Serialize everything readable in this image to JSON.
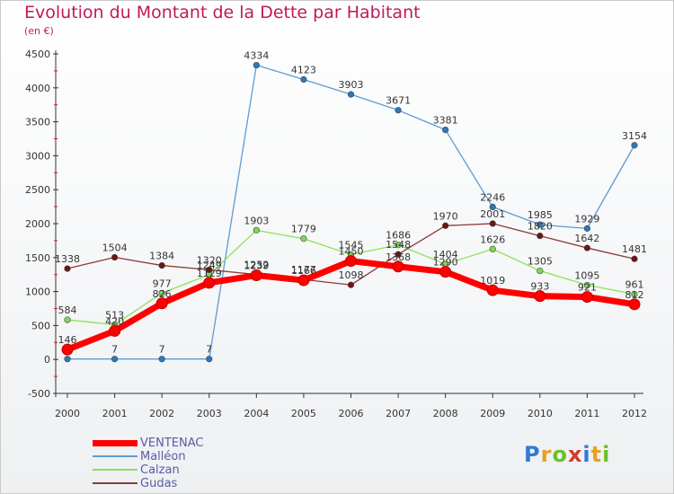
{
  "header": {
    "title": "Evolution du Montant de la Dette par Habitant",
    "subtitle": "(en €)"
  },
  "brand": {
    "text": "Proxiti",
    "letter_colors": [
      "#2e7bd6",
      "#e8a020",
      "#6cbf2a",
      "#d63a2e",
      "#2e7bd6",
      "#e8a020",
      "#6cbf2a"
    ]
  },
  "chart_data": {
    "type": "line",
    "title": "Evolution du Montant de la Dette par Habitant",
    "subtitle": "(en €)",
    "x": [
      "2000",
      "2001",
      "2002",
      "2003",
      "2004",
      "2005",
      "2006",
      "2007",
      "2008",
      "2009",
      "2010",
      "2011",
      "2012"
    ],
    "ylim": [
      -500,
      4500
    ],
    "yticks": [
      -500,
      0,
      500,
      1000,
      1500,
      2000,
      2500,
      3000,
      3500,
      4000,
      4500
    ],
    "grid": false,
    "legend_position": "bottom-left",
    "series": [
      {
        "name": "VENTENAC",
        "color": "#ff0000",
        "marker": "#ff0000",
        "emphasis": true,
        "values": [
          146,
          420,
          826,
          1129,
          1239,
          1166,
          1450,
          1368,
          1290,
          1019,
          933,
          921,
          812
        ]
      },
      {
        "name": "Malléon",
        "color": "#5b9bd5",
        "marker": "#2e78b8",
        "emphasis": false,
        "values": [
          7,
          7,
          7,
          7,
          4334,
          4123,
          3903,
          3671,
          3381,
          2246,
          1985,
          1929,
          3154
        ]
      },
      {
        "name": "Calzan",
        "color": "#8fe05a",
        "marker": "#7ed957",
        "emphasis": false,
        "values": [
          584,
          513,
          977,
          1249,
          1903,
          1779,
          1545,
          1686,
          1404,
          1626,
          1305,
          1095,
          961
        ]
      },
      {
        "name": "Gudas",
        "color": "#8b3a3a",
        "marker": "#6b1414",
        "emphasis": false,
        "values": [
          1338,
          1504,
          1384,
          1320,
          1252,
          1177,
          1098,
          1548,
          1970,
          2001,
          1820,
          1642,
          1481
        ]
      }
    ]
  }
}
